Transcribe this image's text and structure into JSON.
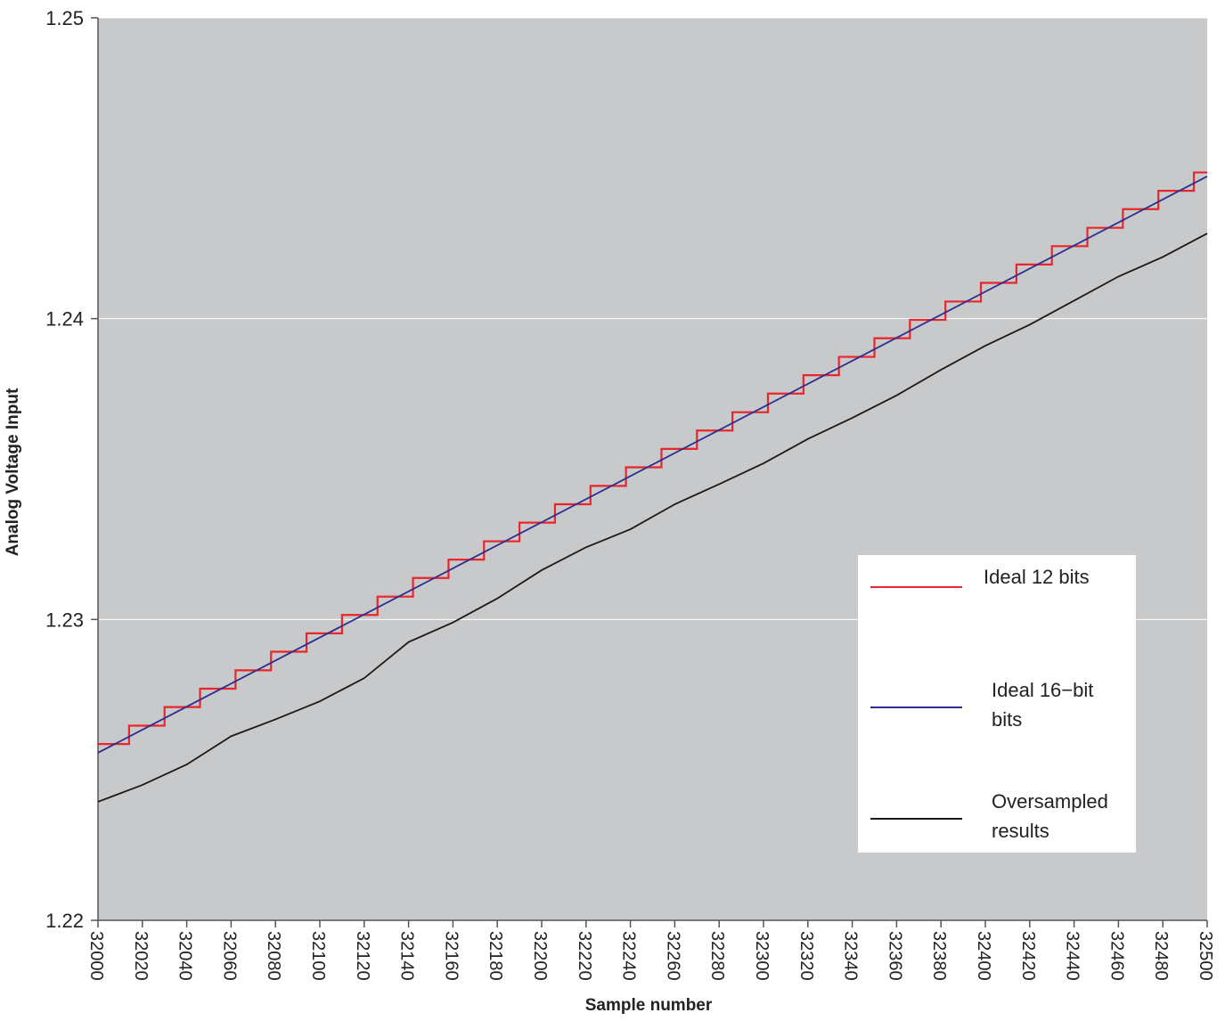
{
  "chart_data": {
    "type": "line",
    "xlabel": "Sample number",
    "ylabel": "Analog Voltage Input",
    "xlim": [
      32000,
      32500
    ],
    "ylim": [
      1.22,
      1.25
    ],
    "xticks": [
      32000,
      32020,
      32040,
      32060,
      32080,
      32100,
      32120,
      32140,
      32160,
      32180,
      32200,
      32220,
      32240,
      32260,
      32280,
      32300,
      32320,
      32340,
      32360,
      32380,
      32400,
      32420,
      32440,
      32460,
      32480,
      32500
    ],
    "yticks": [
      1.22,
      1.23,
      1.24,
      1.25
    ],
    "grid": true,
    "legend": "lower right",
    "series": [
      {
        "name": "Ideal 12 bits",
        "color": "#e8262b",
        "drawstyle": "steps-post",
        "x": [
          32000,
          32014,
          32030,
          32046,
          32062,
          32078,
          32094,
          32110,
          32126,
          32142,
          32158,
          32174,
          32190,
          32206,
          32222,
          32238,
          32254,
          32270,
          32286,
          32302,
          32318,
          32334,
          32350,
          32366,
          32382,
          32398,
          32414,
          32430,
          32446,
          32462,
          32478,
          32494
        ],
        "values": [
          1.22586,
          1.22647,
          1.22709,
          1.2277,
          1.22831,
          1.22893,
          1.22954,
          1.23015,
          1.23076,
          1.23138,
          1.23199,
          1.2326,
          1.23322,
          1.23383,
          1.23444,
          1.23506,
          1.23567,
          1.23628,
          1.23689,
          1.23751,
          1.23812,
          1.23873,
          1.23935,
          1.23996,
          1.24057,
          1.24119,
          1.2418,
          1.24241,
          1.24302,
          1.24364,
          1.24425,
          1.24486
        ]
      },
      {
        "name": "Ideal 16−bit\nbits",
        "color": "#2b2f8f",
        "x": [
          32000,
          32500
        ],
        "values": [
          1.22557,
          1.24473
        ]
      },
      {
        "name": "Oversampled\nresults",
        "color": "#1a1a1a",
        "x": [
          32000,
          32020,
          32040,
          32060,
          32080,
          32100,
          32120,
          32140,
          32160,
          32180,
          32200,
          32220,
          32240,
          32260,
          32280,
          32300,
          32320,
          32340,
          32360,
          32380,
          32400,
          32420,
          32440,
          32460,
          32480,
          32500
        ],
        "values": [
          1.22394,
          1.2245,
          1.22518,
          1.22612,
          1.22668,
          1.22728,
          1.22805,
          1.22925,
          1.2299,
          1.2307,
          1.23164,
          1.2324,
          1.233,
          1.23383,
          1.2345,
          1.23519,
          1.236,
          1.2367,
          1.23745,
          1.2383,
          1.2391,
          1.2398,
          1.2406,
          1.2414,
          1.24205,
          1.24283
        ]
      }
    ]
  }
}
